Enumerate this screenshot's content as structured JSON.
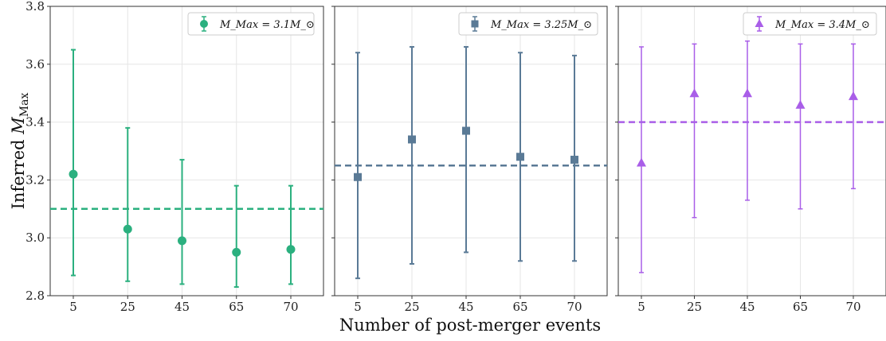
{
  "chart_data": [
    {
      "type": "scatter",
      "name": "panel-1",
      "x_categories": [
        "5",
        "25",
        "45",
        "65",
        "70"
      ],
      "series": [
        {
          "legend": "M_Max = 3.1M_⊙",
          "color": "#2bb07f",
          "marker": "circle",
          "values": [
            3.22,
            3.03,
            2.99,
            2.95,
            2.96
          ],
          "err_low": [
            2.87,
            2.85,
            2.84,
            2.83,
            2.84
          ],
          "err_high": [
            3.65,
            3.38,
            3.27,
            3.18,
            3.18
          ]
        }
      ],
      "true_value": 3.1,
      "ylim": [
        2.8,
        3.8
      ],
      "yticks": [
        "2.8",
        "3.0",
        "3.2",
        "3.4",
        "3.6",
        "3.8"
      ],
      "grid": true,
      "legend_position": "top-right"
    },
    {
      "type": "scatter",
      "name": "panel-2",
      "x_categories": [
        "5",
        "25",
        "45",
        "65",
        "70"
      ],
      "series": [
        {
          "legend": "M_Max = 3.25M_⊙",
          "color": "#5a7a96",
          "marker": "square",
          "values": [
            3.21,
            3.34,
            3.37,
            3.28,
            3.27
          ],
          "err_low": [
            2.86,
            2.91,
            2.95,
            2.92,
            2.92
          ],
          "err_high": [
            3.64,
            3.66,
            3.66,
            3.64,
            3.63
          ]
        }
      ],
      "true_value": 3.25,
      "ylim": [
        2.8,
        3.8
      ],
      "grid": true,
      "legend_position": "top-right"
    },
    {
      "type": "scatter",
      "name": "panel-3",
      "x_categories": [
        "5",
        "25",
        "45",
        "65",
        "70"
      ],
      "series": [
        {
          "legend": "M_Max = 3.4M_⊙",
          "color": "#a95ee8",
          "marker": "triangle",
          "values": [
            3.26,
            3.5,
            3.5,
            3.46,
            3.49
          ],
          "err_low": [
            2.88,
            3.07,
            3.13,
            3.1,
            3.17
          ],
          "err_high": [
            3.66,
            3.67,
            3.68,
            3.67,
            3.67
          ]
        }
      ],
      "true_value": 3.4,
      "ylim": [
        2.8,
        3.8
      ],
      "grid": true,
      "legend_position": "top-right"
    }
  ],
  "labels": {
    "ylabel_prefix": "Inferred ",
    "ylabel_symbol": "M",
    "ylabel_sub": "Max",
    "xlabel": "Number of post-merger events"
  }
}
